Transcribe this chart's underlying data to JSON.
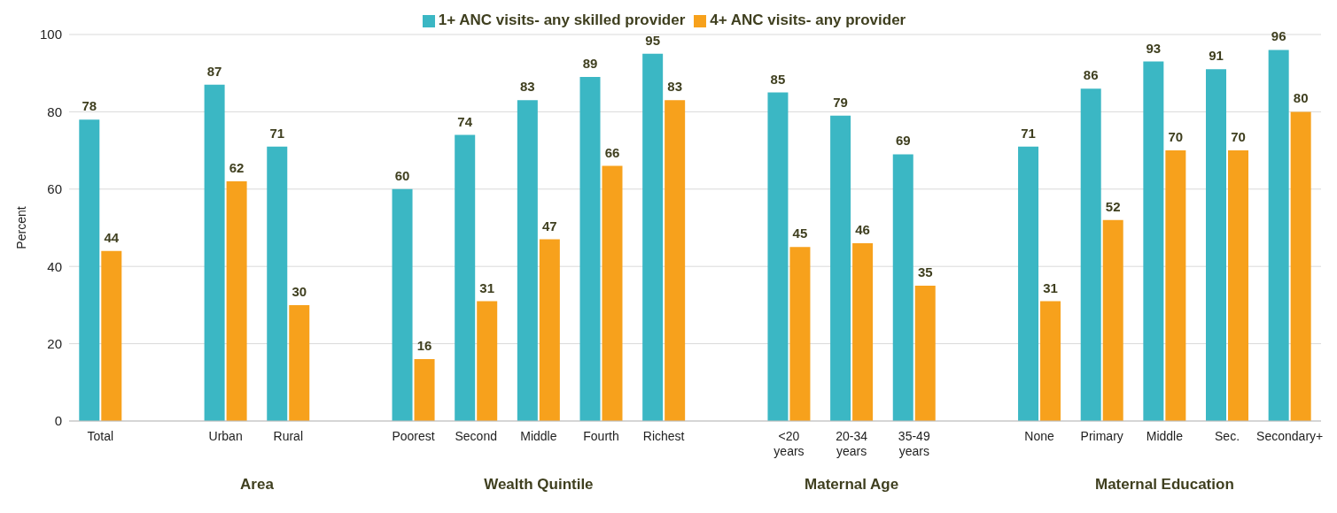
{
  "chart_data": {
    "type": "bar",
    "ylabel": "Percent",
    "categories": [
      "Total",
      null,
      "Urban",
      "Rural",
      null,
      "Poorest",
      "Second",
      "Middle",
      "Fourth",
      "Richest",
      null,
      "<20 years",
      "20-34 years",
      "35-49 years",
      null,
      "None",
      "Primary",
      "Middle",
      "Sec.",
      "Secondary+"
    ],
    "series": [
      {
        "name": "1+ ANC visits- any skilled provider",
        "color": "#3bb7c4",
        "values": [
          78,
          null,
          87,
          71,
          null,
          60,
          74,
          83,
          89,
          95,
          null,
          85,
          79,
          69,
          null,
          71,
          86,
          93,
          91,
          96
        ]
      },
      {
        "name": "4+ ANC visits- any provider",
        "color": "#f7a11c",
        "values": [
          44,
          null,
          62,
          30,
          null,
          16,
          31,
          47,
          66,
          83,
          null,
          45,
          46,
          35,
          null,
          31,
          52,
          70,
          70,
          80
        ]
      }
    ],
    "annotations": [
      "Area",
      "Wealth Quintile",
      "Maternal Age",
      "Maternal Education"
    ],
    "ylim": [
      0,
      100
    ],
    "yticks": [
      0,
      20,
      40,
      60,
      80,
      100
    ],
    "grid": "y",
    "legend": "top",
    "data_labels": true
  }
}
